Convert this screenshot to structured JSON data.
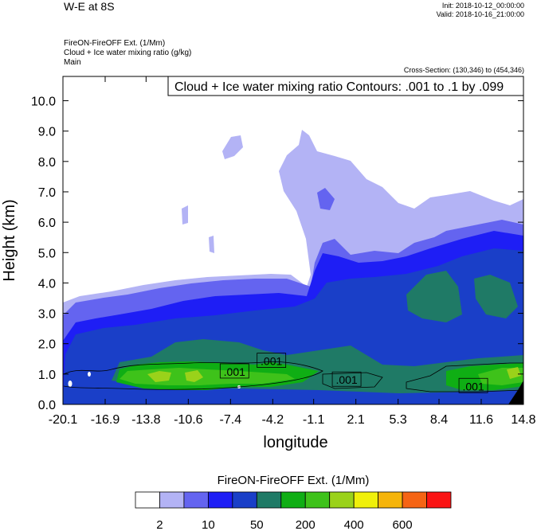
{
  "header": {
    "title": "W-E at 8S",
    "init": "Init: 2018-10-12_00:00:00",
    "valid": "Valid: 2018-10-16_21:00:00",
    "subtitle_lines": [
      "FireON-FireOFF Ext.   (1/Mm)",
      "Cloud + Ice water mixing ratio   (g/kg)",
      "Main"
    ],
    "cross_section": "Cross-Section: (130,346) to (454,346)"
  },
  "chart_data": {
    "type": "heatmap",
    "xlabel": "longitude",
    "ylabel": "Height (km)",
    "xticks": [
      "-20.1",
      "-16.9",
      "-13.8",
      "-10.6",
      "-7.4",
      "-4.2",
      "-1.1",
      "2.1",
      "5.3",
      "8.4",
      "11.6",
      "14.8"
    ],
    "xlim": [
      -20.1,
      14.8
    ],
    "yticks": [
      "0.0",
      "1.0",
      "2.0",
      "3.0",
      "4.0",
      "5.0",
      "6.0",
      "7.0",
      "8.0",
      "9.0",
      "10.0"
    ],
    "ylim": [
      0,
      10.8
    ],
    "contour_title": "Cloud + Ice water mixing ratio Contours: .001 to .1 by .099",
    "contour_labels": [
      {
        "text": ".001",
        "x": -7.1,
        "y": 1.05
      },
      {
        "text": ".001",
        "x": -4.3,
        "y": 1.4
      },
      {
        "text": ".001",
        "x": 1.4,
        "y": 0.78
      },
      {
        "text": ".001",
        "x": 11.0,
        "y": 0.57
      }
    ],
    "colorbar": {
      "title": "FireON-FireOFF Ext.  (1/Mm)",
      "colors": [
        "#ffffff",
        "#b3b3f5",
        "#6464f0",
        "#1e1ef5",
        "#1a3fc8",
        "#1f7a66",
        "#0fae14",
        "#3ec21a",
        "#9ad21a",
        "#f0f00a",
        "#f5b40a",
        "#f56414",
        "#fa1414"
      ],
      "labels": [
        "2",
        "10",
        "50",
        "200",
        "400",
        "600"
      ]
    }
  }
}
